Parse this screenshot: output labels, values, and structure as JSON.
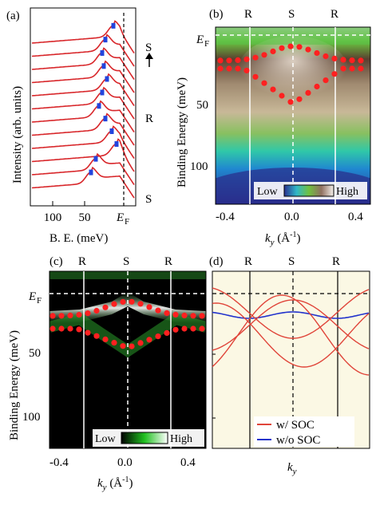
{
  "figure": {
    "panel_a": {
      "label": "(a)",
      "ylabel": "Intensity (arb. units)",
      "xlabel": "B. E. (meV)",
      "xticks": [
        "100",
        "50"
      ],
      "ef_label": "E",
      "ef_sub": "F",
      "side_labels": [
        "S",
        "R",
        "S"
      ]
    },
    "panel_b": {
      "label": "(b)",
      "ylabel": "Binding Energy (meV)",
      "xlabel_main": "k",
      "xlabel_sub": "y",
      "xlabel_unit": " (Å",
      "xlabel_sup": "-1",
      "xlabel_close": ")",
      "xticks": [
        "-0.4",
        "0.0",
        "0.4"
      ],
      "yticks": [
        "50",
        "100"
      ],
      "ef_label": "E",
      "ef_sub": "F",
      "top_labels": [
        "R",
        "S",
        "R"
      ],
      "colorbar_low": "Low",
      "colorbar_high": "High"
    },
    "panel_c": {
      "label": "(c)",
      "ylabel": "Binding Energy (meV)",
      "xlabel_main": "k",
      "xlabel_sub": "y",
      "xlabel_unit": " (Å",
      "xlabel_sup": "-1",
      "xlabel_close": ")",
      "xticks": [
        "-0.4",
        "0.0",
        "0.4"
      ],
      "yticks": [
        "50",
        "100"
      ],
      "ef_label": "E",
      "ef_sub": "F",
      "top_labels": [
        "R",
        "S",
        "R"
      ],
      "colorbar_low": "Low",
      "colorbar_high": "High"
    },
    "panel_d": {
      "label": "(d)",
      "xlabel_main": "k",
      "xlabel_sub": "y",
      "top_labels": [
        "R",
        "S",
        "R"
      ],
      "legend": [
        {
          "label": "w/ SOC",
          "color": "#e0453a"
        },
        {
          "label": "w/o SOC",
          "color": "#2233cc"
        }
      ]
    }
  },
  "colors": {
    "curve_red": "#d8262a",
    "marker_blue": "#2244dd",
    "dots_red": "#ff2020",
    "panel_d_bg": "#fbf8e4",
    "soc_red": "#e0453a",
    "nosoc_blue": "#2233cc"
  }
}
